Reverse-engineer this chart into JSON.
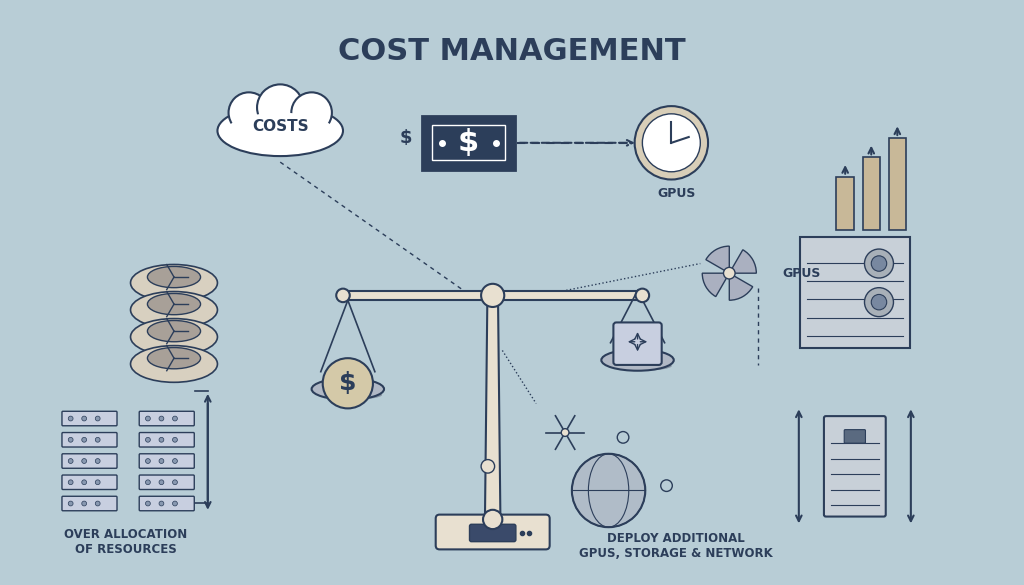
{
  "title": "COST MANAGEMENT",
  "title_fontsize": 22,
  "title_fontweight": "bold",
  "bg_color": "#b8cdd6",
  "dark_color": "#2c3e5a",
  "cream_color": "#e8e0d0",
  "label_over_alloc": "OVER ALLOCATION\nOF RESOURCES",
  "label_deploy": "DEPLOY ADDITIONAL\nGPUS, STORAGE & NETWORK",
  "label_costs": "COSTS",
  "label_gpus1": "GPUS",
  "label_gpus2": "GPUS",
  "label_dollar": "$",
  "figsize": [
    10.24,
    5.85
  ],
  "dpi": 100
}
